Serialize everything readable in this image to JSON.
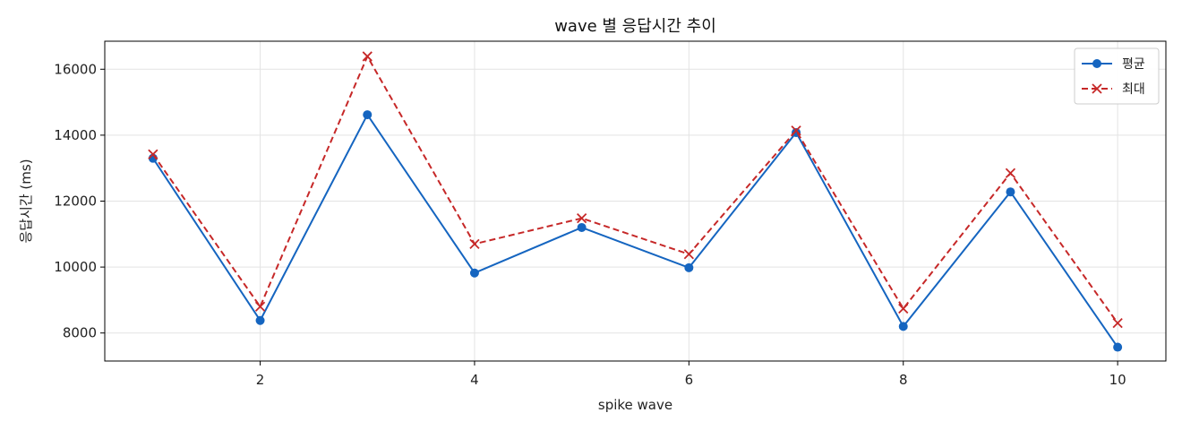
{
  "chart_data": {
    "type": "line",
    "title": "wave 별 응답시간 추이",
    "xlabel": "spike wave",
    "ylabel": "응답시간 (ms)",
    "x": [
      1,
      2,
      3,
      4,
      5,
      6,
      7,
      8,
      9,
      10
    ],
    "xlim": [
      0.55,
      10.45
    ],
    "ylim": [
      7150,
      16850
    ],
    "xticks": [
      2,
      4,
      6,
      8,
      10
    ],
    "yticks": [
      8000,
      10000,
      12000,
      14000,
      16000
    ],
    "grid": true,
    "legend_position": "top-right",
    "series": [
      {
        "name": "평균",
        "color": "#1565c0",
        "line_style": "solid",
        "marker": "circle",
        "values": [
          13300,
          8380,
          14620,
          9820,
          11200,
          9980,
          14080,
          8200,
          12280,
          7570
        ]
      },
      {
        "name": "최대",
        "color": "#c62828",
        "line_style": "dashed",
        "marker": "x",
        "values": [
          13420,
          8800,
          16390,
          10700,
          11480,
          10390,
          14140,
          8740,
          12850,
          8300
        ]
      }
    ]
  }
}
